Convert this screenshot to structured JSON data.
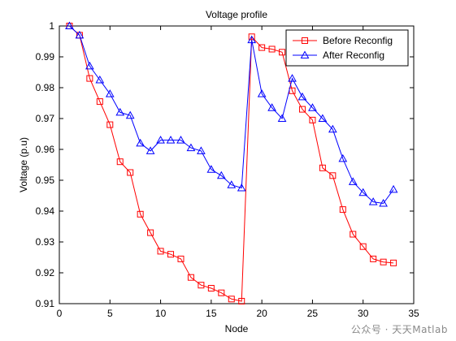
{
  "chart_data": {
    "type": "line",
    "title": "Voltage profile",
    "xlabel": "Node",
    "ylabel": "Voltage (p.u)",
    "xlim": [
      0,
      35
    ],
    "ylim": [
      0.91,
      1.0
    ],
    "xticks": [
      0,
      5,
      10,
      15,
      20,
      25,
      30,
      35
    ],
    "yticks": [
      0.91,
      0.92,
      0.93,
      0.94,
      0.95,
      0.96,
      0.97,
      0.98,
      0.99,
      1.0
    ],
    "ytick_labels": [
      "0.91",
      "0.92",
      "0.93",
      "0.94",
      "0.95",
      "0.96",
      "0.97",
      "0.98",
      "0.99",
      "1"
    ],
    "grid": false,
    "legend_position": "top-right",
    "x": [
      1,
      2,
      3,
      4,
      5,
      6,
      7,
      8,
      9,
      10,
      11,
      12,
      13,
      14,
      15,
      16,
      17,
      18,
      19,
      20,
      21,
      22,
      23,
      24,
      25,
      26,
      27,
      28,
      29,
      30,
      31,
      32,
      33
    ],
    "series": [
      {
        "name": "Before Reconfig",
        "color": "#ff0000",
        "marker": "square",
        "values": [
          1.0,
          0.997,
          0.983,
          0.9755,
          0.968,
          0.956,
          0.9525,
          0.939,
          0.933,
          0.927,
          0.926,
          0.9245,
          0.9185,
          0.916,
          0.915,
          0.9135,
          0.9115,
          0.9108,
          0.9965,
          0.993,
          0.9925,
          0.9915,
          0.979,
          0.973,
          0.9695,
          0.954,
          0.9515,
          0.9405,
          0.9325,
          0.9285,
          0.9245,
          0.9235,
          0.9232
        ]
      },
      {
        "name": "After Reconfig",
        "color": "#0000ff",
        "marker": "triangle",
        "values": [
          1.0,
          0.997,
          0.987,
          0.9825,
          0.978,
          0.972,
          0.971,
          0.962,
          0.9595,
          0.963,
          0.963,
          0.963,
          0.9605,
          0.9595,
          0.9535,
          0.9515,
          0.9485,
          0.9475,
          0.9955,
          0.978,
          0.9735,
          0.97,
          0.983,
          0.977,
          0.9735,
          0.97,
          0.9665,
          0.957,
          0.9495,
          0.946,
          0.943,
          0.9425,
          0.947
        ]
      }
    ]
  },
  "watermark": "公众号 · 天天Matlab",
  "colors": {
    "axis": "#000000",
    "background": "#ffffff"
  }
}
